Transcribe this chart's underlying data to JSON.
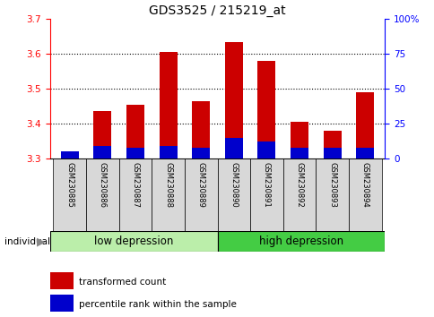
{
  "title": "GDS3525 / 215219_at",
  "samples": [
    "GSM230885",
    "GSM230886",
    "GSM230887",
    "GSM230888",
    "GSM230889",
    "GSM230890",
    "GSM230891",
    "GSM230892",
    "GSM230893",
    "GSM230894"
  ],
  "red_values": [
    3.315,
    3.435,
    3.455,
    3.605,
    3.465,
    3.635,
    3.58,
    3.405,
    3.38,
    3.49
  ],
  "blue_values": [
    3.32,
    3.335,
    3.33,
    3.335,
    3.33,
    3.36,
    3.35,
    3.33,
    3.33,
    3.33
  ],
  "base": 3.3,
  "ylim_left": [
    3.3,
    3.7
  ],
  "ylim_right": [
    0,
    100
  ],
  "yticks_left": [
    3.3,
    3.4,
    3.5,
    3.6,
    3.7
  ],
  "yticks_right": [
    0,
    25,
    50,
    75,
    100
  ],
  "ytick_labels_right": [
    "0",
    "25",
    "50",
    "75",
    "100%"
  ],
  "red_color": "#cc0000",
  "blue_color": "#0000cc",
  "group1_label": "low depression",
  "group2_label": "high depression",
  "group1_color": "#bbeeaa",
  "group2_color": "#44cc44",
  "legend_red": "transformed count",
  "legend_blue": "percentile rank within the sample",
  "bar_width": 0.55,
  "background_color": "#ffffff",
  "label_box_color": "#d8d8d8",
  "grid_color": "#000000",
  "grid_linestyle": "dotted",
  "grid_linewidth": 0.8,
  "individual_label": "individual",
  "left_spine_color": "red",
  "right_spine_color": "blue"
}
